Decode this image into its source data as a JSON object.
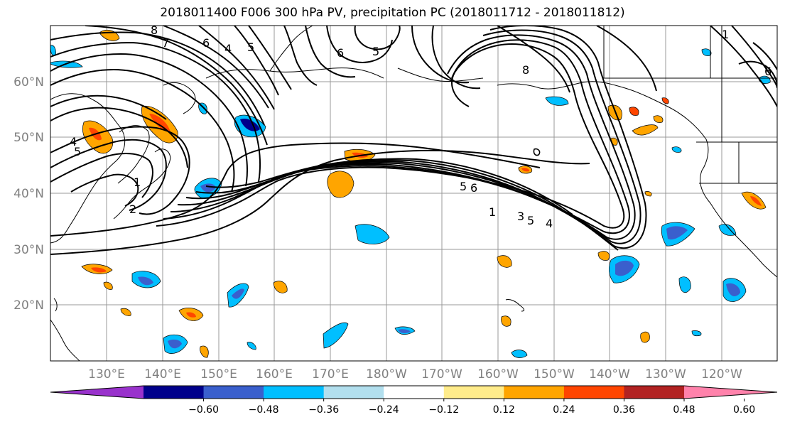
{
  "title": "2018011400 F006 300 hPa PV, precipitation PC (2018011712 - 2018011812)",
  "lon_labels": [
    "130°E",
    "140°E",
    "150°E",
    "160°E",
    "170°E",
    "180°W",
    "170°W",
    "160°W",
    "150°W",
    "140°W",
    "130°W",
    "120°W"
  ],
  "lat_labels": [
    "60°N",
    "50°N",
    "40°N",
    "30°N",
    "20°N"
  ],
  "colorbar": {
    "colors": [
      "#9932CC",
      "#00008B",
      "#3A5FCD",
      "#00BFFF",
      "#B2DFEE",
      "#FFFFFF",
      "#FFEC8B",
      "#FFA500",
      "#FF4500",
      "#B22222",
      "#FF82AB"
    ],
    "tick_labels": [
      "−0.60",
      "−0.48",
      "−0.36",
      "−0.24",
      "−0.12",
      "0.12",
      "0.24",
      "0.36",
      "0.48",
      "0.60"
    ]
  },
  "contour_labels": [
    "8",
    "7",
    "6",
    "4",
    "5",
    "6",
    "5",
    "4",
    "5",
    "2",
    "1",
    "5",
    "6",
    "1",
    "3",
    "5",
    "4",
    "8",
    "6",
    "1"
  ]
}
